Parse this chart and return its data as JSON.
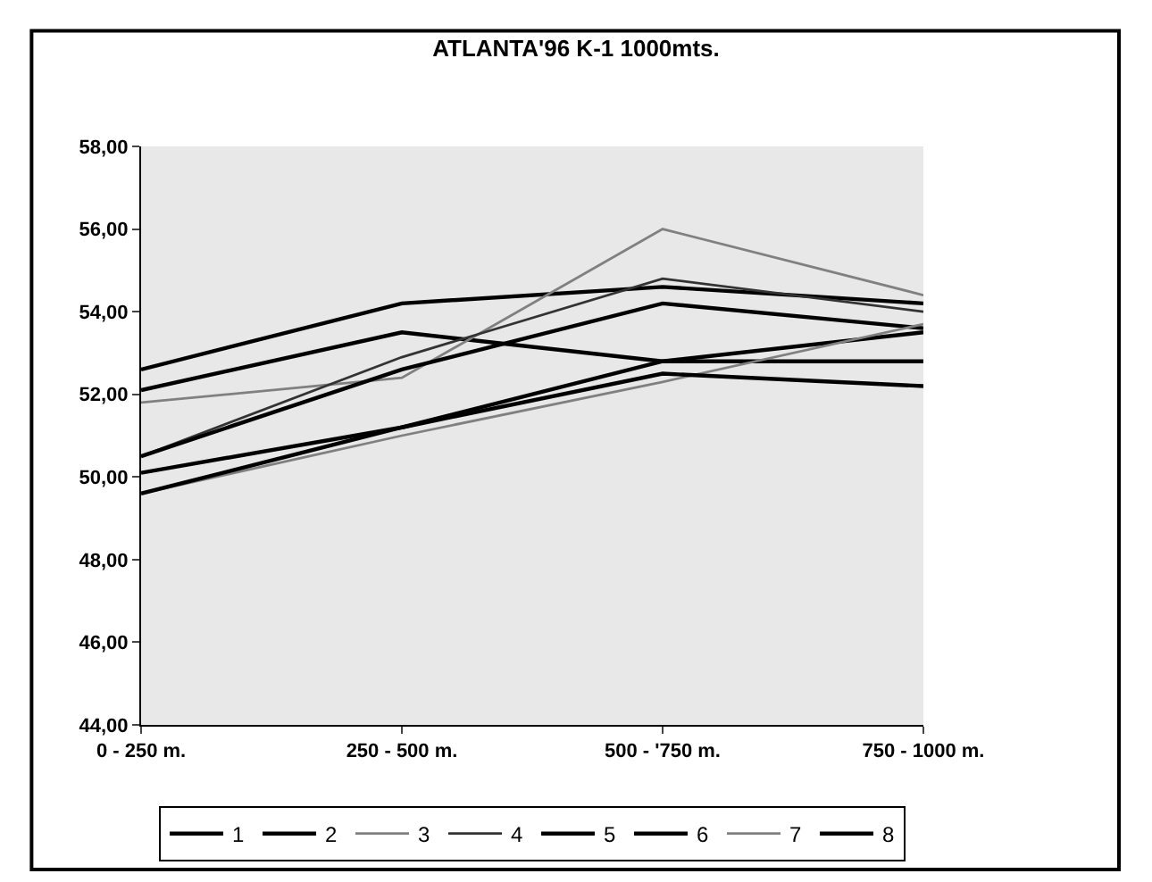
{
  "chart_data": {
    "type": "line",
    "title": "ATLANTA'96 K-1 1000mts.",
    "categories": [
      "0 - 250 m.",
      "250 - 500 m.",
      "500 - '750 m.",
      "750 - 1000 m."
    ],
    "series": [
      {
        "name": "1",
        "color": "#000000",
        "values": [
          52.6,
          54.2,
          54.6,
          54.2
        ]
      },
      {
        "name": "2",
        "color": "#000000",
        "values": [
          52.1,
          53.5,
          52.8,
          52.8
        ]
      },
      {
        "name": "3",
        "color": "#808080",
        "values": [
          51.8,
          52.4,
          56.0,
          54.4
        ]
      },
      {
        "name": "4",
        "color": "#333333",
        "values": [
          50.5,
          52.9,
          54.8,
          54.0
        ]
      },
      {
        "name": "5",
        "color": "#000000",
        "values": [
          50.5,
          52.6,
          54.2,
          53.6
        ]
      },
      {
        "name": "6",
        "color": "#000000",
        "values": [
          50.1,
          51.2,
          52.8,
          53.5
        ]
      },
      {
        "name": "7",
        "color": "#808080",
        "values": [
          49.6,
          51.0,
          52.3,
          53.7
        ]
      },
      {
        "name": "8",
        "color": "#000000",
        "values": [
          49.6,
          51.2,
          52.5,
          52.2
        ]
      }
    ],
    "ylim": [
      44,
      58
    ],
    "yticks": [
      {
        "value": 44,
        "label": "44,00"
      },
      {
        "value": 46,
        "label": "46,00"
      },
      {
        "value": 48,
        "label": "48,00"
      },
      {
        "value": 50,
        "label": "50,00"
      },
      {
        "value": 52,
        "label": "52,00"
      },
      {
        "value": 54,
        "label": "54,00"
      },
      {
        "value": 56,
        "label": "56,00"
      },
      {
        "value": 58,
        "label": "58,00"
      }
    ],
    "grid": false,
    "legend": "bottom",
    "marker": "none",
    "line_style": "solid"
  }
}
